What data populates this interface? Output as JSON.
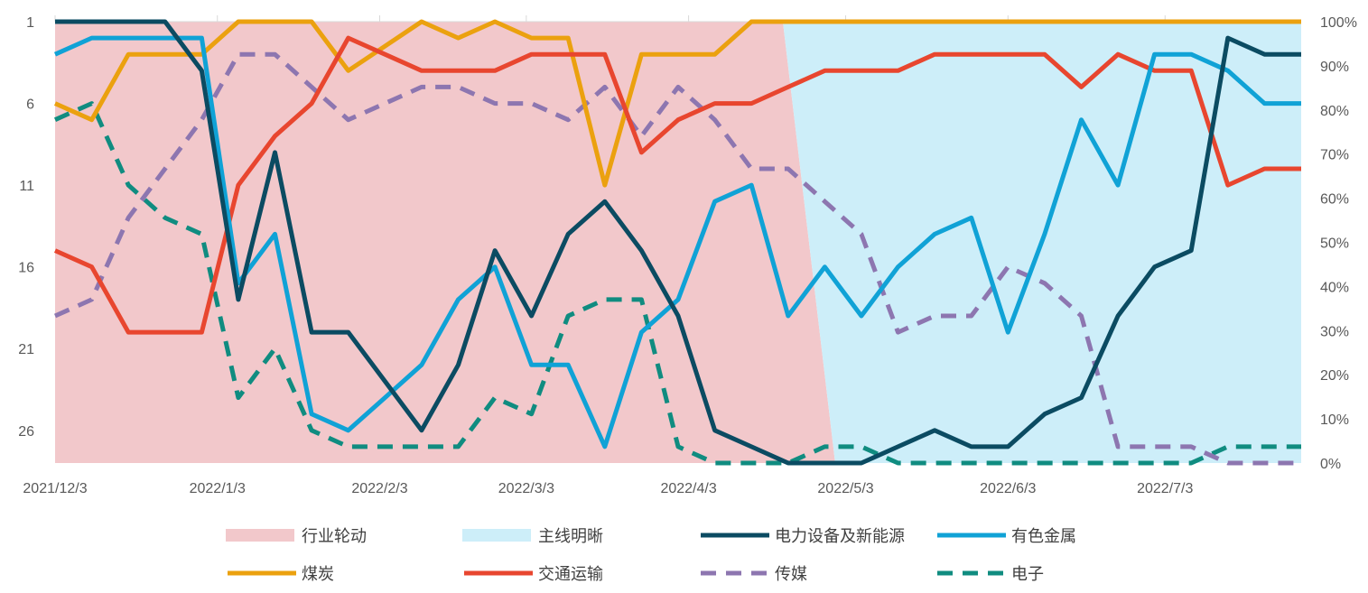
{
  "chart_data": {
    "type": "line",
    "x": [
      "2021/12/3",
      "2021/12/10",
      "2021/12/17",
      "2021/12/24",
      "2021/12/31",
      "2022/1/7",
      "2022/1/14",
      "2022/1/21",
      "2022/1/28",
      "2022/2/4",
      "2022/2/11",
      "2022/2/18",
      "2022/2/25",
      "2022/3/4",
      "2022/3/11",
      "2022/3/18",
      "2022/3/25",
      "2022/4/1",
      "2022/4/8",
      "2022/4/15",
      "2022/4/22",
      "2022/4/29",
      "2022/5/6",
      "2022/5/13",
      "2022/5/20",
      "2022/5/27",
      "2022/6/3",
      "2022/6/10",
      "2022/6/17",
      "2022/6/24",
      "2022/7/1",
      "2022/7/8",
      "2022/7/15",
      "2022/7/22",
      "2022/7/29"
    ],
    "x_ticks": [
      "2021/12/3",
      "2022/1/3",
      "2022/2/3",
      "2022/3/3",
      "2022/4/3",
      "2022/5/3",
      "2022/6/3",
      "2022/7/3"
    ],
    "y_left": {
      "ticks": [
        "1",
        "6",
        "11",
        "16",
        "21",
        "26"
      ],
      "range": [
        1,
        28
      ],
      "reversed": true
    },
    "y_right": {
      "ticks": [
        "100%",
        "90%",
        "80%",
        "70%",
        "60%",
        "50%",
        "40%",
        "30%",
        "20%",
        "10%",
        "0%"
      ],
      "range": [
        0,
        100
      ]
    },
    "regions": [
      {
        "name": "行业轮动",
        "color": "#f2c8cb",
        "start": "2021/12/3",
        "end": "2022/5/1"
      },
      {
        "name": "主线明晰",
        "color": "#cdeef9",
        "start": "2022/5/1",
        "end": "2022/7/29"
      }
    ],
    "series": [
      {
        "name": "电力设备及新能源",
        "color": "#0b4b62",
        "dash": "solid",
        "values": [
          1,
          1,
          1,
          1,
          4,
          18,
          9,
          20,
          20,
          23,
          26,
          22,
          15,
          19,
          14,
          12,
          15,
          19,
          26,
          27,
          28,
          28,
          28,
          27,
          26,
          27,
          27,
          25,
          24,
          19,
          16,
          15,
          2,
          3,
          3
        ]
      },
      {
        "name": "有色金属",
        "color": "#10a2d6",
        "dash": "solid",
        "values": [
          3,
          2,
          2,
          2,
          2,
          17,
          14,
          25,
          26,
          24,
          22,
          18,
          16,
          22,
          22,
          27,
          20,
          18,
          12,
          11,
          19,
          16,
          19,
          16,
          14,
          13,
          20,
          14,
          7,
          11,
          3,
          3,
          4,
          6,
          6
        ]
      },
      {
        "name": "煤炭",
        "color": "#eba10f",
        "dash": "solid",
        "values": [
          6,
          7,
          3,
          3,
          3,
          1,
          1,
          1,
          4,
          2.5,
          1,
          2,
          1,
          2,
          2,
          11,
          3,
          3,
          3,
          1,
          1,
          1,
          1,
          1,
          1,
          1,
          1,
          1,
          1,
          1,
          1,
          1,
          1,
          1,
          1
        ]
      },
      {
        "name": "交通运输",
        "color": "#e8462f",
        "dash": "solid",
        "values": [
          15,
          16,
          20,
          20,
          20,
          11,
          8,
          6,
          2,
          3,
          4,
          4,
          4,
          3,
          3,
          3,
          9,
          7,
          6,
          6,
          5,
          4,
          4,
          4,
          3,
          3,
          3,
          3,
          5,
          3,
          4,
          4,
          11,
          10,
          10
        ]
      },
      {
        "name": "传媒",
        "color": "#8d76b0",
        "dash": "dashed",
        "values": [
          19,
          18,
          13,
          10,
          7,
          3,
          3,
          5,
          7,
          6,
          5,
          5,
          6,
          6,
          7,
          5,
          8,
          5,
          7,
          10,
          10,
          12,
          14,
          20,
          19,
          19,
          16,
          17,
          19,
          27,
          27,
          27,
          28,
          28,
          28
        ]
      },
      {
        "name": "电子",
        "color": "#108c80",
        "dash": "dashed",
        "values": [
          7,
          6,
          11,
          13,
          14,
          24,
          21,
          26,
          27,
          27,
          27,
          27,
          24,
          25,
          19,
          18,
          18,
          27,
          28,
          28,
          28,
          27,
          27,
          28,
          28,
          28,
          28,
          28,
          28,
          28,
          28,
          28,
          27,
          27,
          27
        ]
      }
    ],
    "legend_position": "bottom"
  }
}
